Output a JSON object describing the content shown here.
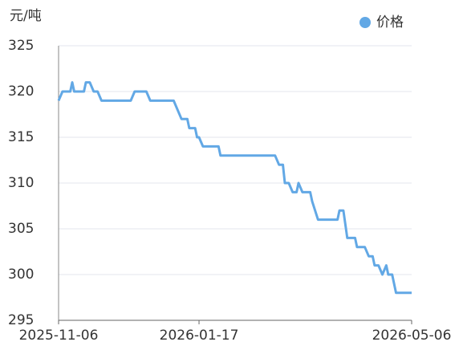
{
  "chart_data": {
    "type": "line",
    "y_axis_label": "元/吨",
    "x": [
      "2025-11-06",
      "2025-11-08",
      "2025-11-12",
      "2025-11-13",
      "2025-11-14",
      "2025-11-19",
      "2025-11-20",
      "2025-11-22",
      "2025-11-24",
      "2025-11-26",
      "2025-11-28",
      "2025-12-13",
      "2025-12-15",
      "2025-12-21",
      "2025-12-23",
      "2026-01-04",
      "2026-01-08",
      "2026-01-11",
      "2026-01-12",
      "2026-01-15",
      "2026-01-16",
      "2026-01-17",
      "2026-01-19",
      "2026-01-27",
      "2026-01-28",
      "2026-02-25",
      "2026-02-27",
      "2026-03-01",
      "2026-03-02",
      "2026-03-04",
      "2026-03-06",
      "2026-03-08",
      "2026-03-09",
      "2026-03-11",
      "2026-03-15",
      "2026-03-16",
      "2026-03-19",
      "2026-03-29",
      "2026-03-30",
      "2026-04-01",
      "2026-04-03",
      "2026-04-07",
      "2026-04-08",
      "2026-04-12",
      "2026-04-14",
      "2026-04-16",
      "2026-04-17",
      "2026-04-19",
      "2026-04-21",
      "2026-04-23",
      "2026-04-24",
      "2026-04-26",
      "2026-04-28",
      "2026-05-06"
    ],
    "series": [
      {
        "name": "价格",
        "color": "#62a8e5",
        "values": [
          319,
          320,
          320,
          321,
          320,
          320,
          321,
          321,
          320,
          320,
          319,
          319,
          320,
          320,
          319,
          319,
          317,
          317,
          316,
          316,
          315,
          315,
          314,
          314,
          313,
          313,
          312,
          312,
          310,
          310,
          309,
          309,
          310,
          309,
          309,
          308,
          306,
          306,
          307,
          307,
          304,
          304,
          303,
          303,
          302,
          302,
          301,
          301,
          300,
          301,
          300,
          300,
          298,
          298
        ]
      }
    ],
    "xlim": [
      "2025-11-06",
      "2026-05-06"
    ],
    "xticks": [
      "2025-11-06",
      "2026-01-17",
      "2026-05-06"
    ],
    "ylim": [
      295,
      325
    ],
    "yticks": [
      295,
      300,
      305,
      310,
      315,
      320,
      325
    ],
    "grid": true,
    "legend": "top-right"
  }
}
